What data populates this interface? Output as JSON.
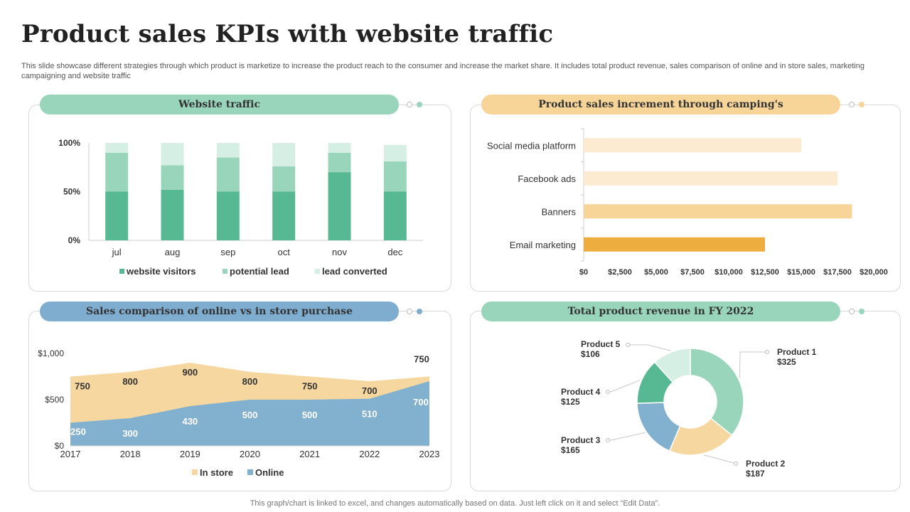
{
  "page": {
    "title": "Product sales KPIs with website traffic",
    "subtitle": "This slide showcase different strategies through which product is marketize to increase the product reach to the consumer and increase the market share. It includes total product revenue, sales comparison of online and in store sales, marketing campaigning and website traffic",
    "footer": "This graph/chart is linked to excel,  and changes automatically based on data. Just left click on it and select “Edit Data”."
  },
  "colors": {
    "green_dark": "#57b894",
    "green_mid": "#99d5bb",
    "green_light": "#d6efe5",
    "orange_dark": "#eeae3f",
    "orange_mid": "#f7d599",
    "orange_light": "#fcebd0",
    "blue": "#82b0cf",
    "sand": "#f5d79f",
    "header_blue": "#7fadd0"
  },
  "chart_data": [
    {
      "id": "website_traffic",
      "type": "bar",
      "title": "Website traffic",
      "stacked": true,
      "categories": [
        "jul",
        "aug",
        "sep",
        "oct",
        "nov",
        "dec"
      ],
      "series": [
        {
          "name": "website visitors",
          "values": [
            50,
            52,
            50,
            50,
            70,
            50
          ]
        },
        {
          "name": "potential lead",
          "values": [
            40,
            25,
            35,
            26,
            20,
            31
          ]
        },
        {
          "name": "lead converted",
          "values": [
            10,
            23,
            15,
            24,
            10,
            17
          ]
        }
      ],
      "yticks": [
        "0%",
        "50%",
        "100%"
      ],
      "ylim": [
        0,
        100
      ]
    },
    {
      "id": "campaigns",
      "type": "bar",
      "orientation": "horizontal",
      "title": "Product sales increment through camping's",
      "categories": [
        "Social media platform",
        "Facebook ads",
        "Banners",
        "Email marketing"
      ],
      "values": [
        15000,
        17500,
        18500,
        12500
      ],
      "xticks": [
        "$0",
        "$2,500",
        "$5,000",
        "$7,500",
        "$10,000",
        "$12,500",
        "$15,000",
        "$17,500",
        "$20,000"
      ],
      "xlim": [
        0,
        20000
      ]
    },
    {
      "id": "online_vs_store",
      "type": "area",
      "title": "Sales comparison of online vs in store purchase",
      "x": [
        "2017",
        "2018",
        "2019",
        "2020",
        "2021",
        "2022",
        "2023"
      ],
      "series": [
        {
          "name": "In store",
          "values": [
            750,
            800,
            900,
            800,
            750,
            700,
            750
          ],
          "labels": [
            "750",
            "800",
            "900",
            "800",
            "750",
            "700",
            "750"
          ]
        },
        {
          "name": "Online",
          "values": [
            250,
            300,
            430,
            500,
            500,
            510,
            700
          ],
          "labels": [
            "250",
            "300",
            "430",
            "500",
            "500",
            "510",
            "700"
          ]
        }
      ],
      "yticks": [
        "$0",
        "$500",
        "$1,000"
      ],
      "ylim": [
        0,
        1000
      ]
    },
    {
      "id": "revenue",
      "type": "pie",
      "donut": true,
      "title": "Total product revenue in FY 2022",
      "slices": [
        {
          "name": "Product 1",
          "value": 325,
          "label": "$325"
        },
        {
          "name": "Product 2",
          "value": 187,
          "label": "$187"
        },
        {
          "name": "Product 3",
          "value": 165,
          "label": "$165"
        },
        {
          "name": "Product 4",
          "value": 125,
          "label": "$125"
        },
        {
          "name": "Product 5",
          "value": 106,
          "label": "$106"
        }
      ]
    }
  ]
}
